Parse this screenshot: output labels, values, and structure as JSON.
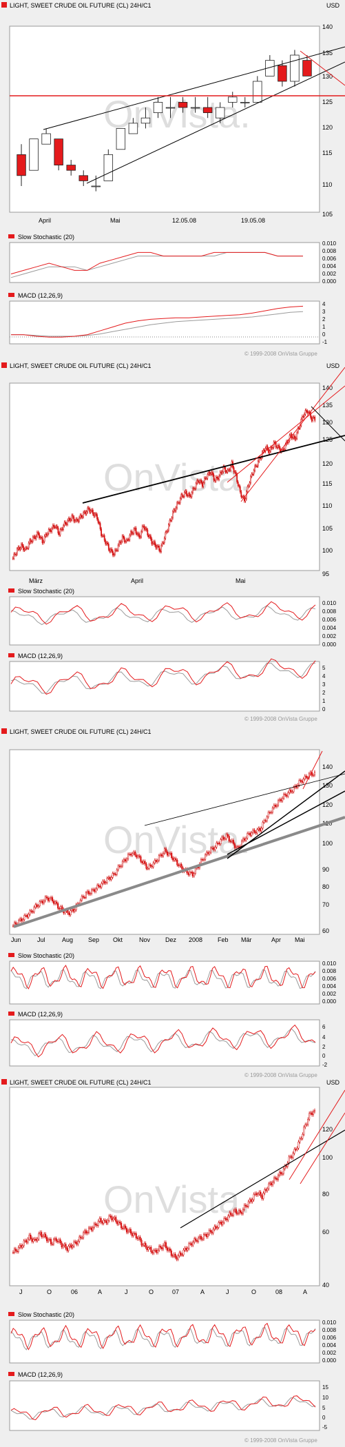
{
  "colors": {
    "up_candle": "#ffffff",
    "down_candle": "#e41a1c",
    "line_red": "#e41a1c",
    "line_gray": "#9a9a9a",
    "trend_black": "#000000",
    "watermark": "#d8d8d8",
    "background": "#efefef",
    "panel": "#ffffff"
  },
  "watermark": "OnVista.",
  "copyright": "© 1999-2008 OnVista Gruppe",
  "chart_data": [
    {
      "type": "candlestick",
      "title": "LIGHT, SWEET CRUDE OIL FUTURE (CL) 24H/C1",
      "currency": "USD",
      "x_ticks": [
        "April",
        "Mai",
        "12.05.08",
        "19.05.08"
      ],
      "ylim": [
        105,
        140
      ],
      "y_ticks": [
        105,
        110,
        115,
        120,
        125,
        130,
        135,
        140
      ],
      "series": [
        {
          "candles": [
            [
              116,
              118,
              110,
              112
            ],
            [
              113,
              119,
              113,
              119
            ],
            [
              118,
              121,
              118,
              120
            ],
            [
              119,
              119,
              113,
              114
            ],
            [
              114,
              115,
              112,
              113
            ],
            [
              112,
              113,
              110,
              111
            ],
            [
              110,
              112,
              109,
              110
            ],
            [
              111,
              117,
              111,
              116
            ],
            [
              117,
              121,
              117,
              121
            ],
            [
              120,
              123,
              120,
              122
            ],
            [
              122,
              125,
              121,
              123
            ],
            [
              124,
              127,
              123,
              126
            ],
            [
              125,
              127,
              123,
              125
            ],
            [
              126,
              127,
              124,
              125
            ],
            [
              125,
              127,
              124,
              125
            ],
            [
              125,
              127,
              123,
              124
            ],
            [
              123,
              126,
              122,
              125
            ],
            [
              126,
              128,
              125,
              127
            ],
            [
              126,
              127,
              125,
              126
            ],
            [
              126,
              131,
              126,
              130
            ],
            [
              131,
              135,
              131,
              134
            ],
            [
              133,
              134,
              129,
              130
            ],
            [
              130,
              136,
              129,
              135
            ],
            [
              134,
              135,
              131,
              131
            ]
          ]
        }
      ],
      "indicators": [
        {
          "name": "Slow Stochastic (20)",
          "ylim": [
            0,
            0.01
          ],
          "y_ticks": [
            "0.010",
            "0.008",
            "0.006",
            "0.004",
            "0.002",
            "0.000"
          ],
          "k": [
            0.002,
            0.003,
            0.004,
            0.005,
            0.004,
            0.003,
            0.003,
            0.005,
            0.006,
            0.007,
            0.008,
            0.008,
            0.007,
            0.007,
            0.007,
            0.007,
            0.008,
            0.008,
            0.008,
            0.008,
            0.008,
            0.007,
            0.007,
            0.007
          ],
          "d": [
            0.001,
            0.002,
            0.003,
            0.004,
            0.004,
            0.004,
            0.003,
            0.004,
            0.005,
            0.006,
            0.007,
            0.007,
            0.007,
            0.007,
            0.007,
            0.007,
            0.007,
            0.008,
            0.008,
            0.008,
            0.008,
            0.007,
            0.007,
            0.007
          ]
        },
        {
          "name": "MACD (12,26,9)",
          "ylim": [
            -1,
            4
          ],
          "y_ticks": [
            "4",
            "3",
            "2",
            "1",
            "0",
            "-1"
          ],
          "macd": [
            0,
            0,
            -0.2,
            -0.3,
            -0.3,
            -0.2,
            0,
            0.5,
            1.0,
            1.5,
            1.8,
            2.0,
            2.1,
            2.2,
            2.2,
            2.3,
            2.4,
            2.5,
            2.6,
            2.8,
            3.1,
            3.4,
            3.6,
            3.7
          ],
          "signal": [
            0,
            0,
            -0.1,
            -0.2,
            -0.2,
            -0.2,
            -0.1,
            0.1,
            0.4,
            0.7,
            1.0,
            1.3,
            1.5,
            1.7,
            1.8,
            1.9,
            2.0,
            2.1,
            2.2,
            2.3,
            2.5,
            2.7,
            2.9,
            3.0
          ]
        }
      ]
    },
    {
      "type": "candlestick",
      "title": "LIGHT, SWEET CRUDE OIL FUTURE (CL) 24H/C1",
      "currency": "USD",
      "x_ticks": [
        "März",
        "April",
        "Mai"
      ],
      "ylim": [
        95,
        140
      ],
      "y_ticks": [
        95,
        100,
        105,
        110,
        115,
        120,
        125,
        130,
        135,
        140
      ],
      "series": [
        {
          "close": [
            98,
            100,
            101,
            100,
            102,
            103,
            104,
            102,
            104,
            105,
            106,
            104,
            106,
            107,
            108,
            107,
            108,
            109,
            110,
            109,
            108,
            104,
            102,
            100,
            99,
            101,
            103,
            102,
            104,
            105,
            103,
            106,
            104,
            102,
            101,
            100,
            103,
            106,
            109,
            111,
            113,
            114,
            113,
            115,
            117,
            116,
            118,
            119,
            117,
            118,
            120,
            119,
            121,
            118,
            114,
            112,
            116,
            119,
            121,
            123,
            125,
            124,
            126,
            125,
            124,
            126,
            128,
            127,
            130,
            133,
            134,
            132
          ]
        }
      ],
      "indicators": [
        {
          "name": "Slow Stochastic (20)",
          "ylim": [
            0,
            0.01
          ],
          "y_ticks": [
            "0.010",
            "0.008",
            "0.006",
            "0.004",
            "0.002",
            "0.000"
          ]
        },
        {
          "name": "MACD (12,26,9)",
          "ylim": [
            -1,
            5
          ],
          "y_ticks": [
            "5",
            "4",
            "3",
            "2",
            "1",
            "0"
          ]
        }
      ]
    },
    {
      "type": "candlestick",
      "title": "LIGHT, SWEET CRUDE OIL FUTURE (CL) 24H/C1",
      "currency": "USD",
      "x_ticks": [
        "Jun",
        "Jul",
        "Aug",
        "Sep",
        "Okt",
        "Nov",
        "Dez",
        "2008",
        "Feb",
        "Mär",
        "Apr",
        "Mai"
      ],
      "ylim": [
        60,
        145
      ],
      "y_ticks": [
        60,
        70,
        80,
        90,
        100,
        110,
        120,
        130,
        140
      ],
      "series": [
        {
          "close": [
            64,
            66,
            68,
            70,
            73,
            75,
            77,
            76,
            73,
            71,
            70,
            72,
            76,
            79,
            80,
            82,
            84,
            86,
            88,
            92,
            95,
            98,
            97,
            94,
            91,
            93,
            96,
            99,
            97,
            94,
            91,
            89,
            88,
            92,
            96,
            99,
            101,
            104,
            106,
            103,
            100,
            104,
            107,
            108,
            109,
            114,
            118,
            121,
            124,
            126,
            128,
            131,
            133,
            135
          ]
        }
      ],
      "indicators": [
        {
          "name": "Slow Stochastic (20)",
          "ylim": [
            0,
            0.01
          ],
          "y_ticks": [
            "0.010",
            "0.008",
            "0.006",
            "0.004",
            "0.002",
            "0.000"
          ]
        },
        {
          "name": "MACD (12,26,9)",
          "ylim": [
            -2,
            6
          ],
          "y_ticks": [
            "6",
            "4",
            "2",
            "0",
            "-2"
          ]
        }
      ]
    },
    {
      "type": "candlestick",
      "title": "LIGHT, SWEET CRUDE OIL FUTURE (CL) 24H/C1",
      "currency": "USD",
      "x_ticks": [
        "J",
        "O",
        "06",
        "A",
        "J",
        "O",
        "07",
        "A",
        "J",
        "O",
        "08",
        "A"
      ],
      "ylim": [
        40,
        145
      ],
      "y_ticks": [
        40,
        60,
        80,
        100,
        120
      ],
      "series": [
        {
          "close": [
            58,
            60,
            63,
            66,
            64,
            68,
            66,
            63,
            65,
            62,
            60,
            62,
            64,
            68,
            70,
            72,
            75,
            74,
            77,
            75,
            72,
            70,
            68,
            66,
            62,
            60,
            58,
            60,
            62,
            58,
            55,
            57,
            60,
            63,
            65,
            66,
            68,
            70,
            73,
            75,
            78,
            80,
            79,
            83,
            86,
            90,
            88,
            93,
            96,
            99,
            102,
            108,
            112,
            118,
            126,
            133
          ]
        }
      ],
      "indicators": [
        {
          "name": "Slow Stochastic (20)",
          "ylim": [
            0,
            0.01
          ],
          "y_ticks": [
            "0.010",
            "0.008",
            "0.006",
            "0.004",
            "0.002",
            "0.000"
          ]
        },
        {
          "name": "MACD (12,26,9)",
          "ylim": [
            -5,
            15
          ],
          "y_ticks": [
            "15",
            "10",
            "5",
            "0",
            "-5"
          ]
        }
      ]
    }
  ]
}
